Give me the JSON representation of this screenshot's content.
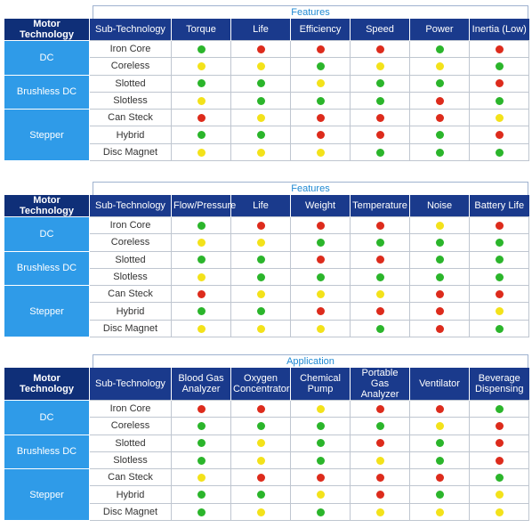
{
  "colors": {
    "red": "#dd2b1c",
    "green": "#2bb52b",
    "yellow": "#f3e21a"
  },
  "tables": [
    {
      "band": "Features",
      "headers": [
        "Motor Technology",
        "Sub-Technology",
        "Torque",
        "Life",
        "Efficiency",
        "Speed",
        "Power",
        "Inertia (Low)"
      ],
      "groups": [
        {
          "motor": "DC",
          "rows": [
            {
              "sub": "Iron Core",
              "vals": [
                "green",
                "red",
                "red",
                "red",
                "green",
                "red"
              ]
            },
            {
              "sub": "Coreless",
              "vals": [
                "yellow",
                "yellow",
                "green",
                "yellow",
                "yellow",
                "green"
              ]
            }
          ]
        },
        {
          "motor": "Brushless DC",
          "rows": [
            {
              "sub": "Slotted",
              "vals": [
                "green",
                "green",
                "yellow",
                "green",
                "green",
                "red"
              ]
            },
            {
              "sub": "Slotless",
              "vals": [
                "yellow",
                "green",
                "green",
                "green",
                "red",
                "green"
              ]
            }
          ]
        },
        {
          "motor": "Stepper",
          "rows": [
            {
              "sub": "Can Steck",
              "vals": [
                "red",
                "yellow",
                "red",
                "red",
                "red",
                "yellow"
              ]
            },
            {
              "sub": "Hybrid",
              "vals": [
                "green",
                "green",
                "red",
                "red",
                "green",
                "red"
              ]
            },
            {
              "sub": "Disc Magnet",
              "vals": [
                "yellow",
                "yellow",
                "yellow",
                "green",
                "green",
                "green"
              ]
            }
          ]
        }
      ]
    },
    {
      "band": "Features",
      "headers": [
        "Motor Technology",
        "Sub-Technology",
        "Flow/Pressure",
        "Life",
        "Weight",
        "Temperature",
        "Noise",
        "Battery Life"
      ],
      "groups": [
        {
          "motor": "DC",
          "rows": [
            {
              "sub": "Iron Core",
              "vals": [
                "green",
                "red",
                "red",
                "red",
                "yellow",
                "red"
              ]
            },
            {
              "sub": "Coreless",
              "vals": [
                "yellow",
                "yellow",
                "green",
                "green",
                "green",
                "green"
              ]
            }
          ]
        },
        {
          "motor": "Brushless DC",
          "rows": [
            {
              "sub": "Slotted",
              "vals": [
                "green",
                "green",
                "red",
                "red",
                "green",
                "green"
              ]
            },
            {
              "sub": "Slotless",
              "vals": [
                "yellow",
                "green",
                "green",
                "green",
                "green",
                "green"
              ]
            }
          ]
        },
        {
          "motor": "Stepper",
          "rows": [
            {
              "sub": "Can Steck",
              "vals": [
                "red",
                "yellow",
                "yellow",
                "yellow",
                "red",
                "red"
              ]
            },
            {
              "sub": "Hybrid",
              "vals": [
                "green",
                "green",
                "red",
                "red",
                "red",
                "yellow"
              ]
            },
            {
              "sub": "Disc Magnet",
              "vals": [
                "yellow",
                "yellow",
                "yellow",
                "green",
                "red",
                "green"
              ]
            }
          ]
        }
      ]
    },
    {
      "band": "Application",
      "headers": [
        "Motor Technology",
        "Sub-Technology",
        "Blood Gas Analyzer",
        "Oxygen Concentrator",
        "Chemical Pump",
        "Portable Gas Analyzer",
        "Ventilator",
        "Beverage Dispensing"
      ],
      "groups": [
        {
          "motor": "DC",
          "rows": [
            {
              "sub": "Iron Core",
              "vals": [
                "red",
                "red",
                "yellow",
                "red",
                "red",
                "green"
              ]
            },
            {
              "sub": "Coreless",
              "vals": [
                "green",
                "green",
                "green",
                "green",
                "yellow",
                "red"
              ]
            }
          ]
        },
        {
          "motor": "Brushless DC",
          "rows": [
            {
              "sub": "Slotted",
              "vals": [
                "green",
                "yellow",
                "green",
                "red",
                "green",
                "red"
              ]
            },
            {
              "sub": "Slotless",
              "vals": [
                "green",
                "yellow",
                "green",
                "yellow",
                "green",
                "red"
              ]
            }
          ]
        },
        {
          "motor": "Stepper",
          "rows": [
            {
              "sub": "Can Steck",
              "vals": [
                "yellow",
                "red",
                "red",
                "red",
                "red",
                "green"
              ]
            },
            {
              "sub": "Hybrid",
              "vals": [
                "green",
                "green",
                "yellow",
                "red",
                "green",
                "yellow"
              ]
            },
            {
              "sub": "Disc Magnet",
              "vals": [
                "green",
                "yellow",
                "green",
                "yellow",
                "yellow",
                "yellow"
              ]
            }
          ]
        }
      ]
    }
  ]
}
